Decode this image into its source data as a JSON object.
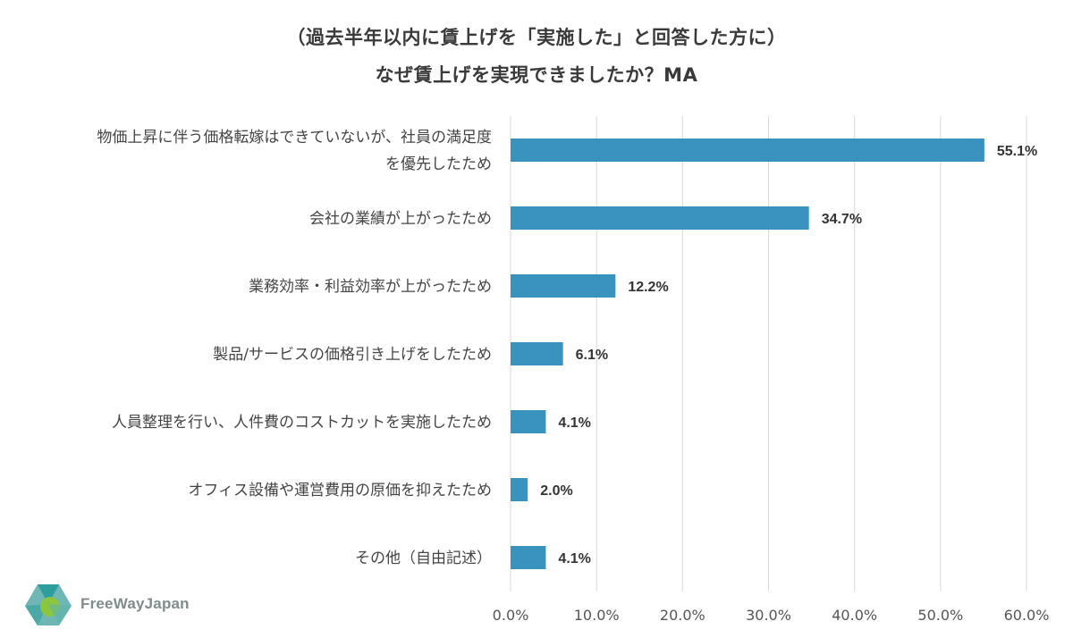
{
  "title": {
    "line1": "（過去半年以内に賃上げを「実施した」と回答した方に）",
    "line2": "なぜ賃上げを実現できましたか？MA"
  },
  "chart_data": {
    "type": "bar",
    "orientation": "horizontal",
    "categories": [
      [
        "物価上昇に伴う価格転嫁はできていないが、社員の満足度",
        "を優先したため"
      ],
      [
        "会社の業績が上がったため"
      ],
      [
        "業務効率・利益効率が上がったため"
      ],
      [
        "製品/サービスの価格引き上げをしたため"
      ],
      [
        "人員整理を行い、人件費のコストカットを実施したため"
      ],
      [
        "オフィス設備や運営費用の原価を抑えたため"
      ],
      [
        "その他（自由記述）"
      ]
    ],
    "values": [
      55.1,
      34.7,
      12.2,
      6.1,
      4.1,
      2.0,
      4.1
    ],
    "value_labels": [
      "55.1%",
      "34.7%",
      "12.2%",
      "6.1%",
      "4.1%",
      "2.0%",
      "4.1%"
    ],
    "xlim": [
      0,
      60
    ],
    "xticks": [
      0,
      10,
      20,
      30,
      40,
      50,
      60
    ],
    "xtick_labels": [
      "0.0%",
      "10.0%",
      "20.0%",
      "30.0%",
      "40.0%",
      "50.0%",
      "60.0%"
    ],
    "grid": true,
    "bar_color": "#3a93bf",
    "grid_color": "#d9d9d9"
  },
  "logo": {
    "text": "FreeWayJapan",
    "colors": [
      "#2e9e9c",
      "#8cc63f",
      "#6fb7b5"
    ]
  }
}
